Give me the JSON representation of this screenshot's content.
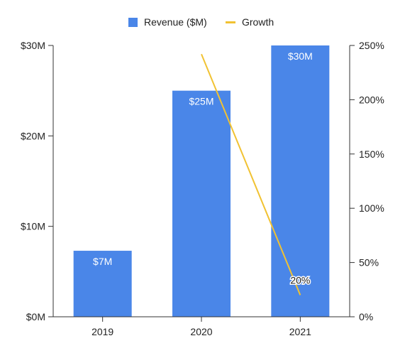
{
  "chart_data": {
    "type": "bar",
    "categories": [
      "2019",
      "2020",
      "2021"
    ],
    "series": [
      {
        "name": "Revenue ($M)",
        "type": "bar",
        "axis": "left",
        "values": [
          7.3,
          25,
          30
        ],
        "data_labels": [
          "$7M",
          "$25M",
          "$30M"
        ],
        "color": "#4a86e8"
      },
      {
        "name": "Growth",
        "type": "line",
        "axis": "right",
        "values": [
          null,
          242,
          20
        ],
        "data_labels": [
          null,
          null,
          "20%"
        ],
        "color": "#f1c232"
      }
    ],
    "y_left": {
      "ylim": [
        0,
        30
      ],
      "ticks": [
        0,
        10,
        20,
        30
      ],
      "tick_labels": [
        "$0M",
        "$10M",
        "$20M",
        "$30M"
      ]
    },
    "y_right": {
      "ylim": [
        0,
        250
      ],
      "ticks": [
        0,
        50,
        100,
        150,
        200,
        250
      ],
      "tick_labels": [
        "0%",
        "50%",
        "100%",
        "150%",
        "200%",
        "250%"
      ]
    },
    "legend": {
      "position": "top"
    },
    "grid": false
  }
}
